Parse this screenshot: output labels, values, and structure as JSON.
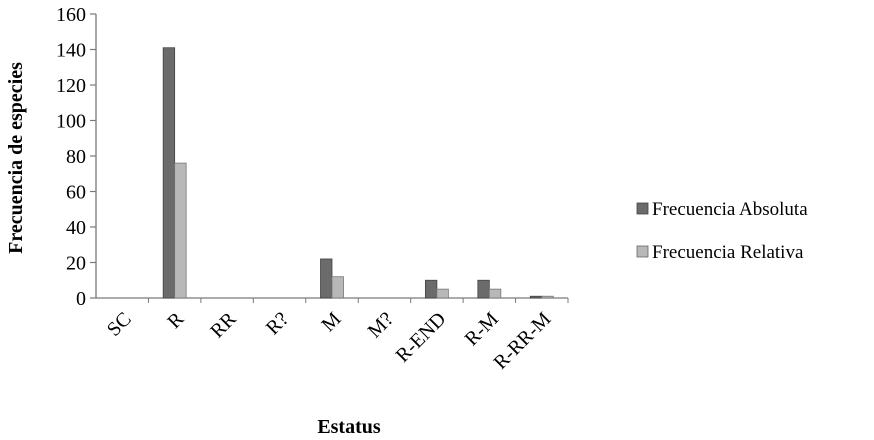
{
  "chart_data": {
    "type": "bar",
    "categories": [
      "SC",
      "R",
      "RR",
      "R?",
      "M",
      "M?",
      "R-END",
      "R-M",
      "R-RR-M"
    ],
    "series": [
      {
        "name": "Frecuencia Absoluta",
        "values": [
          0,
          141,
          0,
          0,
          22,
          0,
          10,
          10,
          1
        ],
        "color": "#6b6b6b"
      },
      {
        "name": "Frecuencia Relativa",
        "values": [
          0,
          76,
          0,
          0,
          12,
          0,
          5,
          5,
          1
        ],
        "color": "#b8b8b8"
      }
    ],
    "ylabel": "Frecuencia de especies",
    "xlabel": "Estatus",
    "ylim": [
      0,
      160
    ],
    "yticks": [
      "0",
      "20",
      "40",
      "60",
      "80",
      "100",
      "120",
      "140",
      "160"
    ],
    "grid": false,
    "legend_position": "right"
  }
}
